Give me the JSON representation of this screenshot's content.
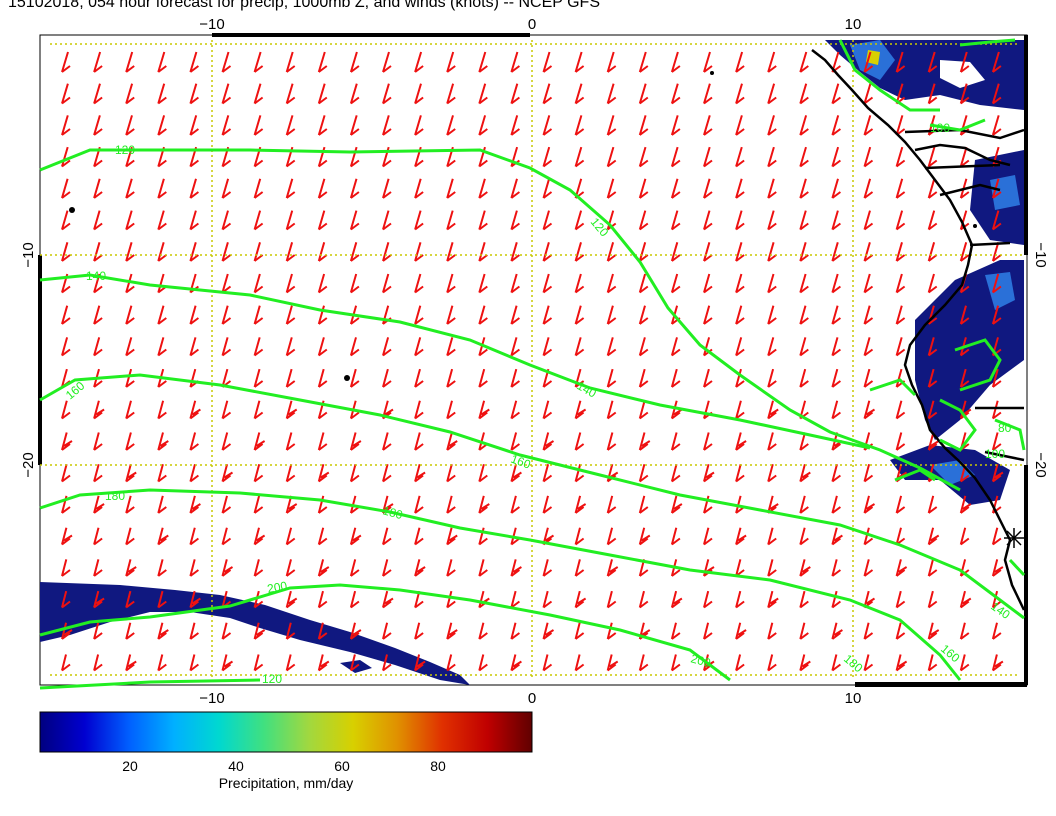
{
  "title": "15102018, 054 hour forecast for precip, 1000mb Z, and winds (knots) -- NCEP GFS",
  "axes": {
    "top_ticks": [
      "−10",
      "0",
      "10"
    ],
    "bottom_ticks": [
      "−10",
      "0",
      "10"
    ],
    "left_ticks": [
      "−10",
      "−20"
    ],
    "right_ticks": [
      "−10",
      "−20"
    ]
  },
  "contours": {
    "color": "#22ee22",
    "labels": [
      "120",
      "120",
      "140",
      "160",
      "140",
      "160",
      "180",
      "180",
      "200",
      "200",
      "100",
      "140",
      "160",
      "180",
      "80",
      "100",
      "120"
    ]
  },
  "colorbar": {
    "label": "Precipitation, mm/day",
    "ticks": [
      "20",
      "40",
      "60",
      "80"
    ],
    "colors": [
      "#000080",
      "#0000d0",
      "#0060ff",
      "#00b0ff",
      "#00d8d0",
      "#40e080",
      "#a0d840",
      "#d8d000",
      "#e09000",
      "#e03000",
      "#c00000",
      "#600000"
    ]
  },
  "colors": {
    "wind_barb": "#ee1111",
    "grid": "#c8c800",
    "precip": "#101880",
    "coast": "#000000"
  }
}
